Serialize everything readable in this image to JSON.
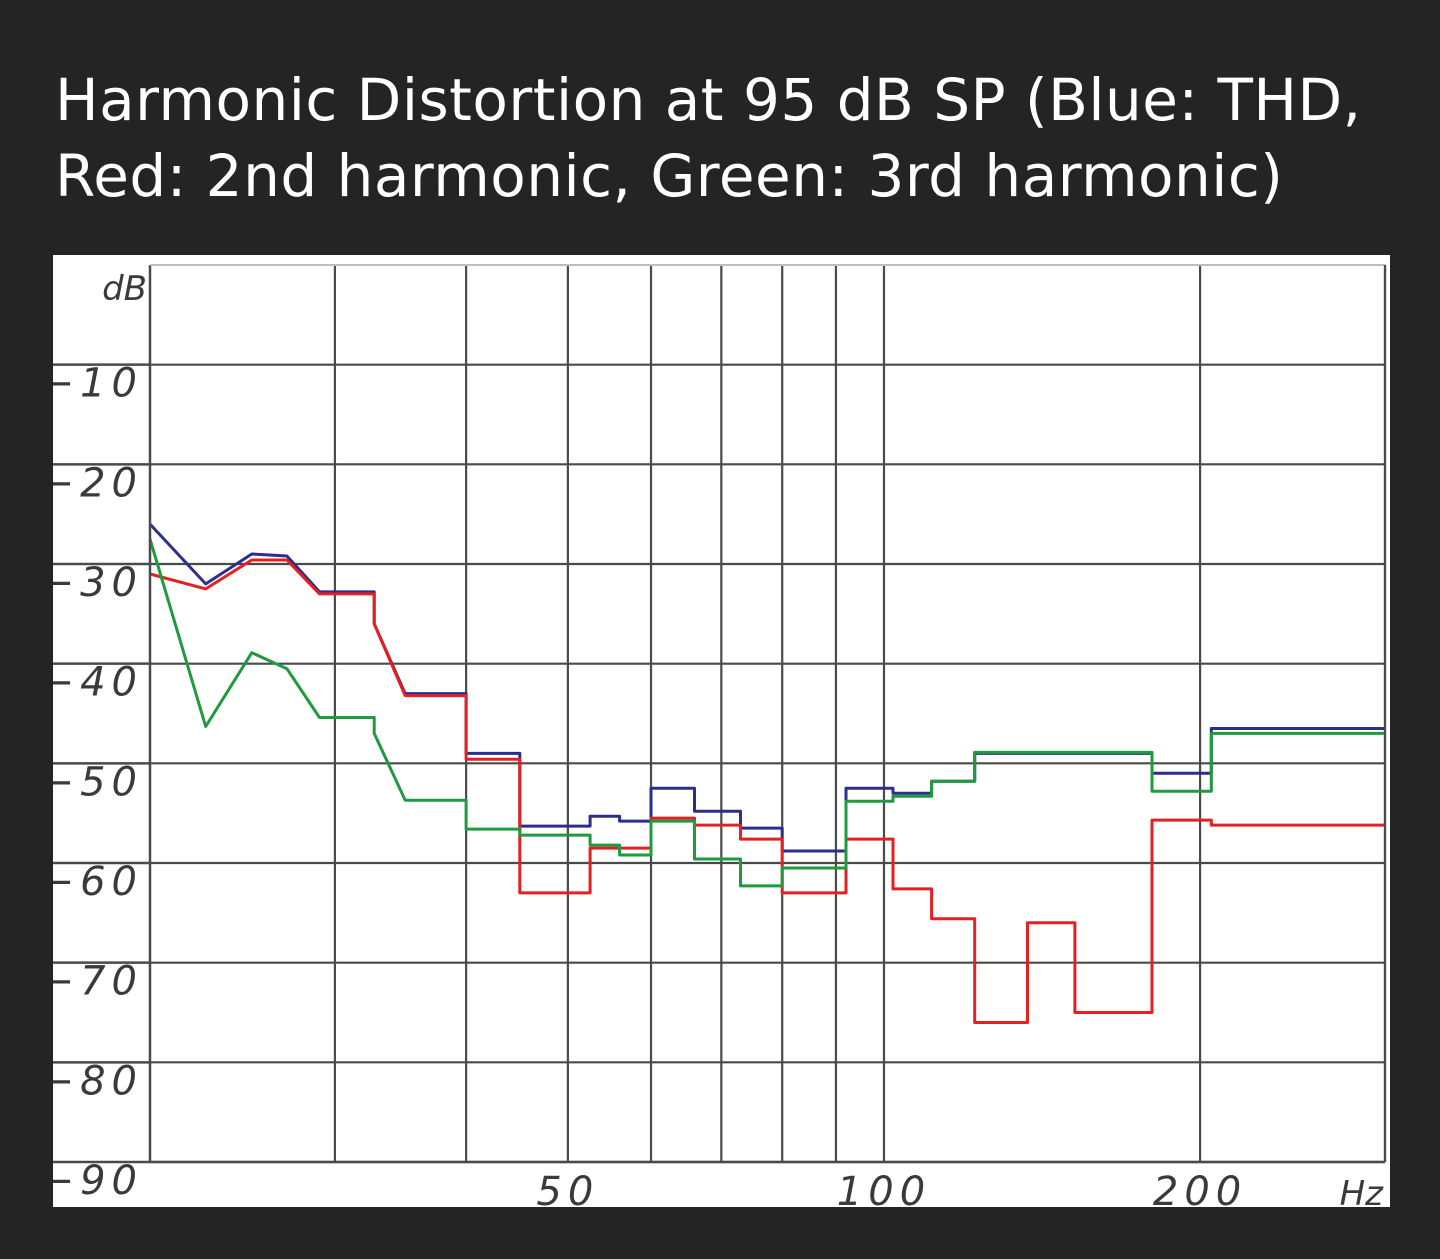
{
  "title": {
    "line1": "Harmonic Distortion at 95 dB SP (Blue: THD,",
    "line2": "Red: 2nd harmonic, Green: 3rd harmonic)"
  },
  "chart_data": {
    "type": "line",
    "title": "Harmonic Distortion at 95 dB SP (Blue: THD, Red: 2nd harmonic, Green: 3rd harmonic)",
    "xlabel": "Hz",
    "ylabel": "dB",
    "x_scale": "log",
    "xlim": [
      20,
      300
    ],
    "ylim": [
      -90,
      0
    ],
    "x_tick_labels": [
      {
        "value": 50,
        "label": "50"
      },
      {
        "value": 100,
        "label": "100"
      },
      {
        "value": 200,
        "label": "200"
      }
    ],
    "x_gridlines": [
      30,
      40,
      50,
      60,
      70,
      80,
      90,
      100,
      200,
      300
    ],
    "y_ticks": [
      -10,
      -20,
      -30,
      -40,
      -50,
      -60,
      -70,
      -80,
      -90
    ],
    "y_tick_labels": [
      "−10",
      "−20",
      "−30",
      "−40",
      "−50",
      "−60",
      "−70",
      "−80",
      "−90"
    ],
    "grid": true,
    "series": [
      {
        "color": "#2b2e8c",
        "points": [
          [
            20,
            -26
          ],
          [
            22.6,
            -32
          ],
          [
            25,
            -29
          ],
          [
            27,
            -29.2
          ],
          [
            29,
            -32.8
          ],
          [
            32.7,
            -32.8
          ],
          [
            32.7,
            -36
          ],
          [
            35,
            -43
          ],
          [
            40,
            -43
          ],
          [
            40,
            -49
          ],
          [
            45,
            -49
          ],
          [
            45,
            -56.3
          ],
          [
            52.5,
            -56.3
          ],
          [
            52.5,
            -55.3
          ],
          [
            56,
            -55.3
          ],
          [
            56,
            -55.8
          ],
          [
            60,
            -55.8
          ],
          [
            60,
            -52.5
          ],
          [
            66,
            -52.5
          ],
          [
            66,
            -54.8
          ],
          [
            73,
            -54.8
          ],
          [
            73,
            -56.5
          ],
          [
            80,
            -56.5
          ],
          [
            80,
            -58.8
          ],
          [
            92,
            -58.8
          ],
          [
            92,
            -52.5
          ],
          [
            102,
            -52.5
          ],
          [
            102,
            -53
          ],
          [
            111,
            -53
          ],
          [
            111,
            -51.8
          ],
          [
            122,
            -51.8
          ],
          [
            122,
            -49
          ],
          [
            180,
            -49
          ],
          [
            180,
            -51
          ],
          [
            205,
            -51
          ],
          [
            205,
            -46.5
          ],
          [
            300,
            -46.5
          ]
        ]
      },
      {
        "color": "#e32022",
        "points": [
          [
            20,
            -31
          ],
          [
            22.6,
            -32.5
          ],
          [
            25,
            -29.6
          ],
          [
            27,
            -29.6
          ],
          [
            29,
            -33
          ],
          [
            32.7,
            -33
          ],
          [
            32.7,
            -36
          ],
          [
            35,
            -43.2
          ],
          [
            40,
            -43.2
          ],
          [
            40,
            -49.6
          ],
          [
            45,
            -49.6
          ],
          [
            45,
            -63
          ],
          [
            52.5,
            -63
          ],
          [
            52.5,
            -58.5
          ],
          [
            56,
            -58.5
          ],
          [
            56,
            -58.5
          ],
          [
            60,
            -58.5
          ],
          [
            60,
            -55.5
          ],
          [
            66,
            -55.5
          ],
          [
            66,
            -56.2
          ],
          [
            73,
            -56.2
          ],
          [
            73,
            -57.6
          ],
          [
            80,
            -57.6
          ],
          [
            80,
            -63
          ],
          [
            92,
            -63
          ],
          [
            92,
            -57.6
          ],
          [
            102,
            -57.6
          ],
          [
            102,
            -62.6
          ],
          [
            111,
            -62.6
          ],
          [
            111,
            -65.6
          ],
          [
            122,
            -65.6
          ],
          [
            122,
            -76
          ],
          [
            137,
            -76
          ],
          [
            137,
            -66
          ],
          [
            152,
            -66
          ],
          [
            152,
            -75
          ],
          [
            180,
            -75
          ],
          [
            180,
            -55.7
          ],
          [
            205,
            -55.7
          ],
          [
            205,
            -56.2
          ],
          [
            300,
            -56.2
          ]
        ]
      },
      {
        "color": "#1f9a3e",
        "points": [
          [
            20,
            -27.5
          ],
          [
            22.6,
            -46.3
          ],
          [
            25,
            -38.9
          ],
          [
            27,
            -40.5
          ],
          [
            29,
            -45.4
          ],
          [
            32.7,
            -45.4
          ],
          [
            32.7,
            -47
          ],
          [
            35,
            -53.7
          ],
          [
            40,
            -53.7
          ],
          [
            40,
            -56.6
          ],
          [
            45,
            -56.6
          ],
          [
            45,
            -57.2
          ],
          [
            52.5,
            -57.2
          ],
          [
            52.5,
            -58.2
          ],
          [
            56,
            -58.2
          ],
          [
            56,
            -59.2
          ],
          [
            60,
            -59.2
          ],
          [
            60,
            -55.8
          ],
          [
            66,
            -55.8
          ],
          [
            66,
            -59.6
          ],
          [
            73,
            -59.6
          ],
          [
            73,
            -62.3
          ],
          [
            80,
            -62.3
          ],
          [
            80,
            -60.5
          ],
          [
            92,
            -60.5
          ],
          [
            92,
            -53.8
          ],
          [
            102,
            -53.8
          ],
          [
            102,
            -53.3
          ],
          [
            111,
            -53.3
          ],
          [
            111,
            -51.8
          ],
          [
            122,
            -51.8
          ],
          [
            122,
            -48.9
          ],
          [
            180,
            -48.9
          ],
          [
            180,
            -52.8
          ],
          [
            205,
            -52.8
          ],
          [
            205,
            -47
          ],
          [
            300,
            -47
          ]
        ]
      }
    ]
  }
}
